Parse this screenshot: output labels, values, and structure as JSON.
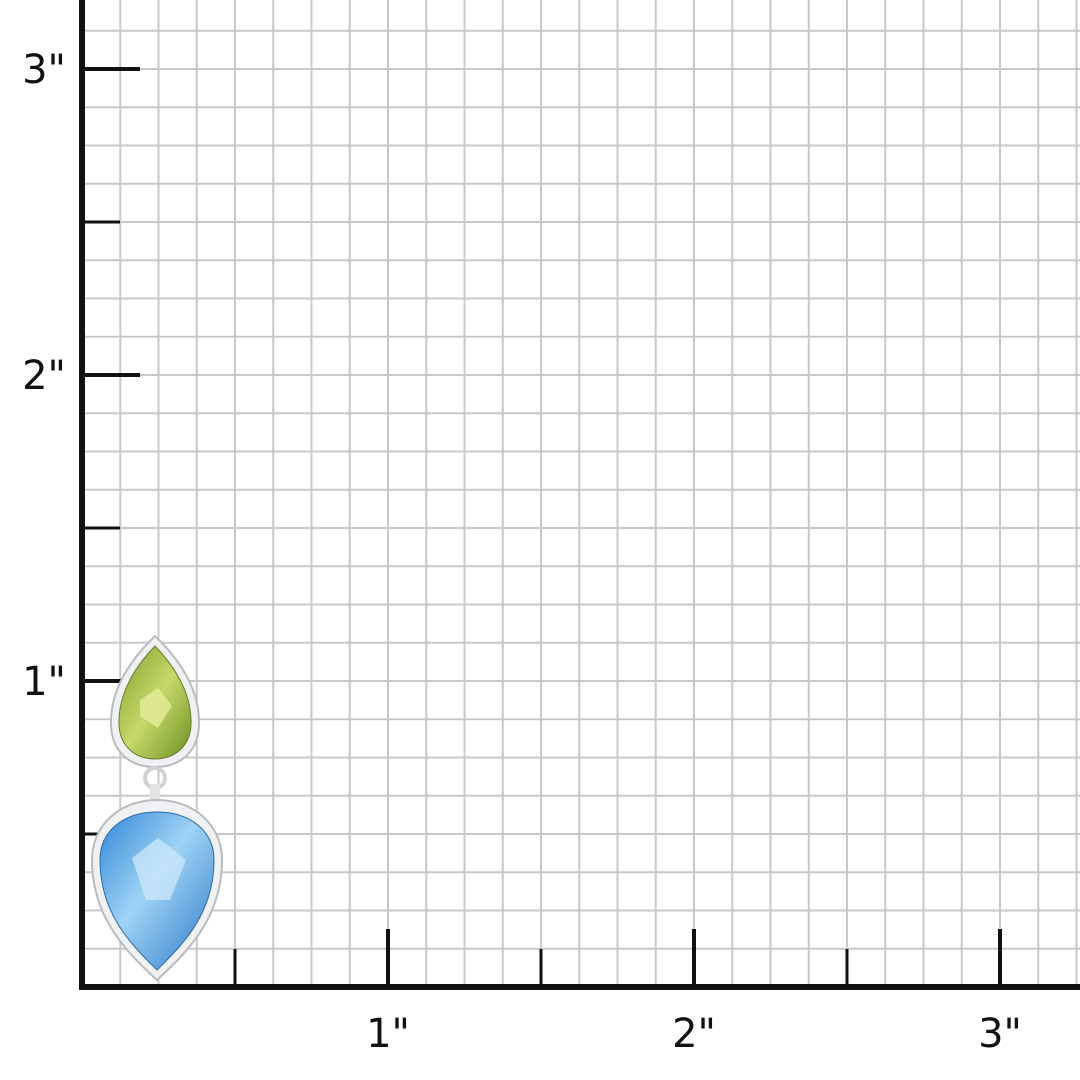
{
  "scale": {
    "unit_mark": "\"",
    "y_labels": [
      "1\"",
      "2\"",
      "3\""
    ],
    "x_labels": [
      "1\"",
      "2\"",
      "3\""
    ],
    "grid_divisions_per_inch": 8
  },
  "product": {
    "top_gem": {
      "name": "peridot",
      "color": "#9cbb3c"
    },
    "bottom_gem": {
      "name": "blue-topaz",
      "color": "#5fb0e8"
    },
    "metal_color": "#e6e8ea"
  },
  "colors": {
    "grid": "#c8c8c8",
    "axis": "#111111"
  }
}
